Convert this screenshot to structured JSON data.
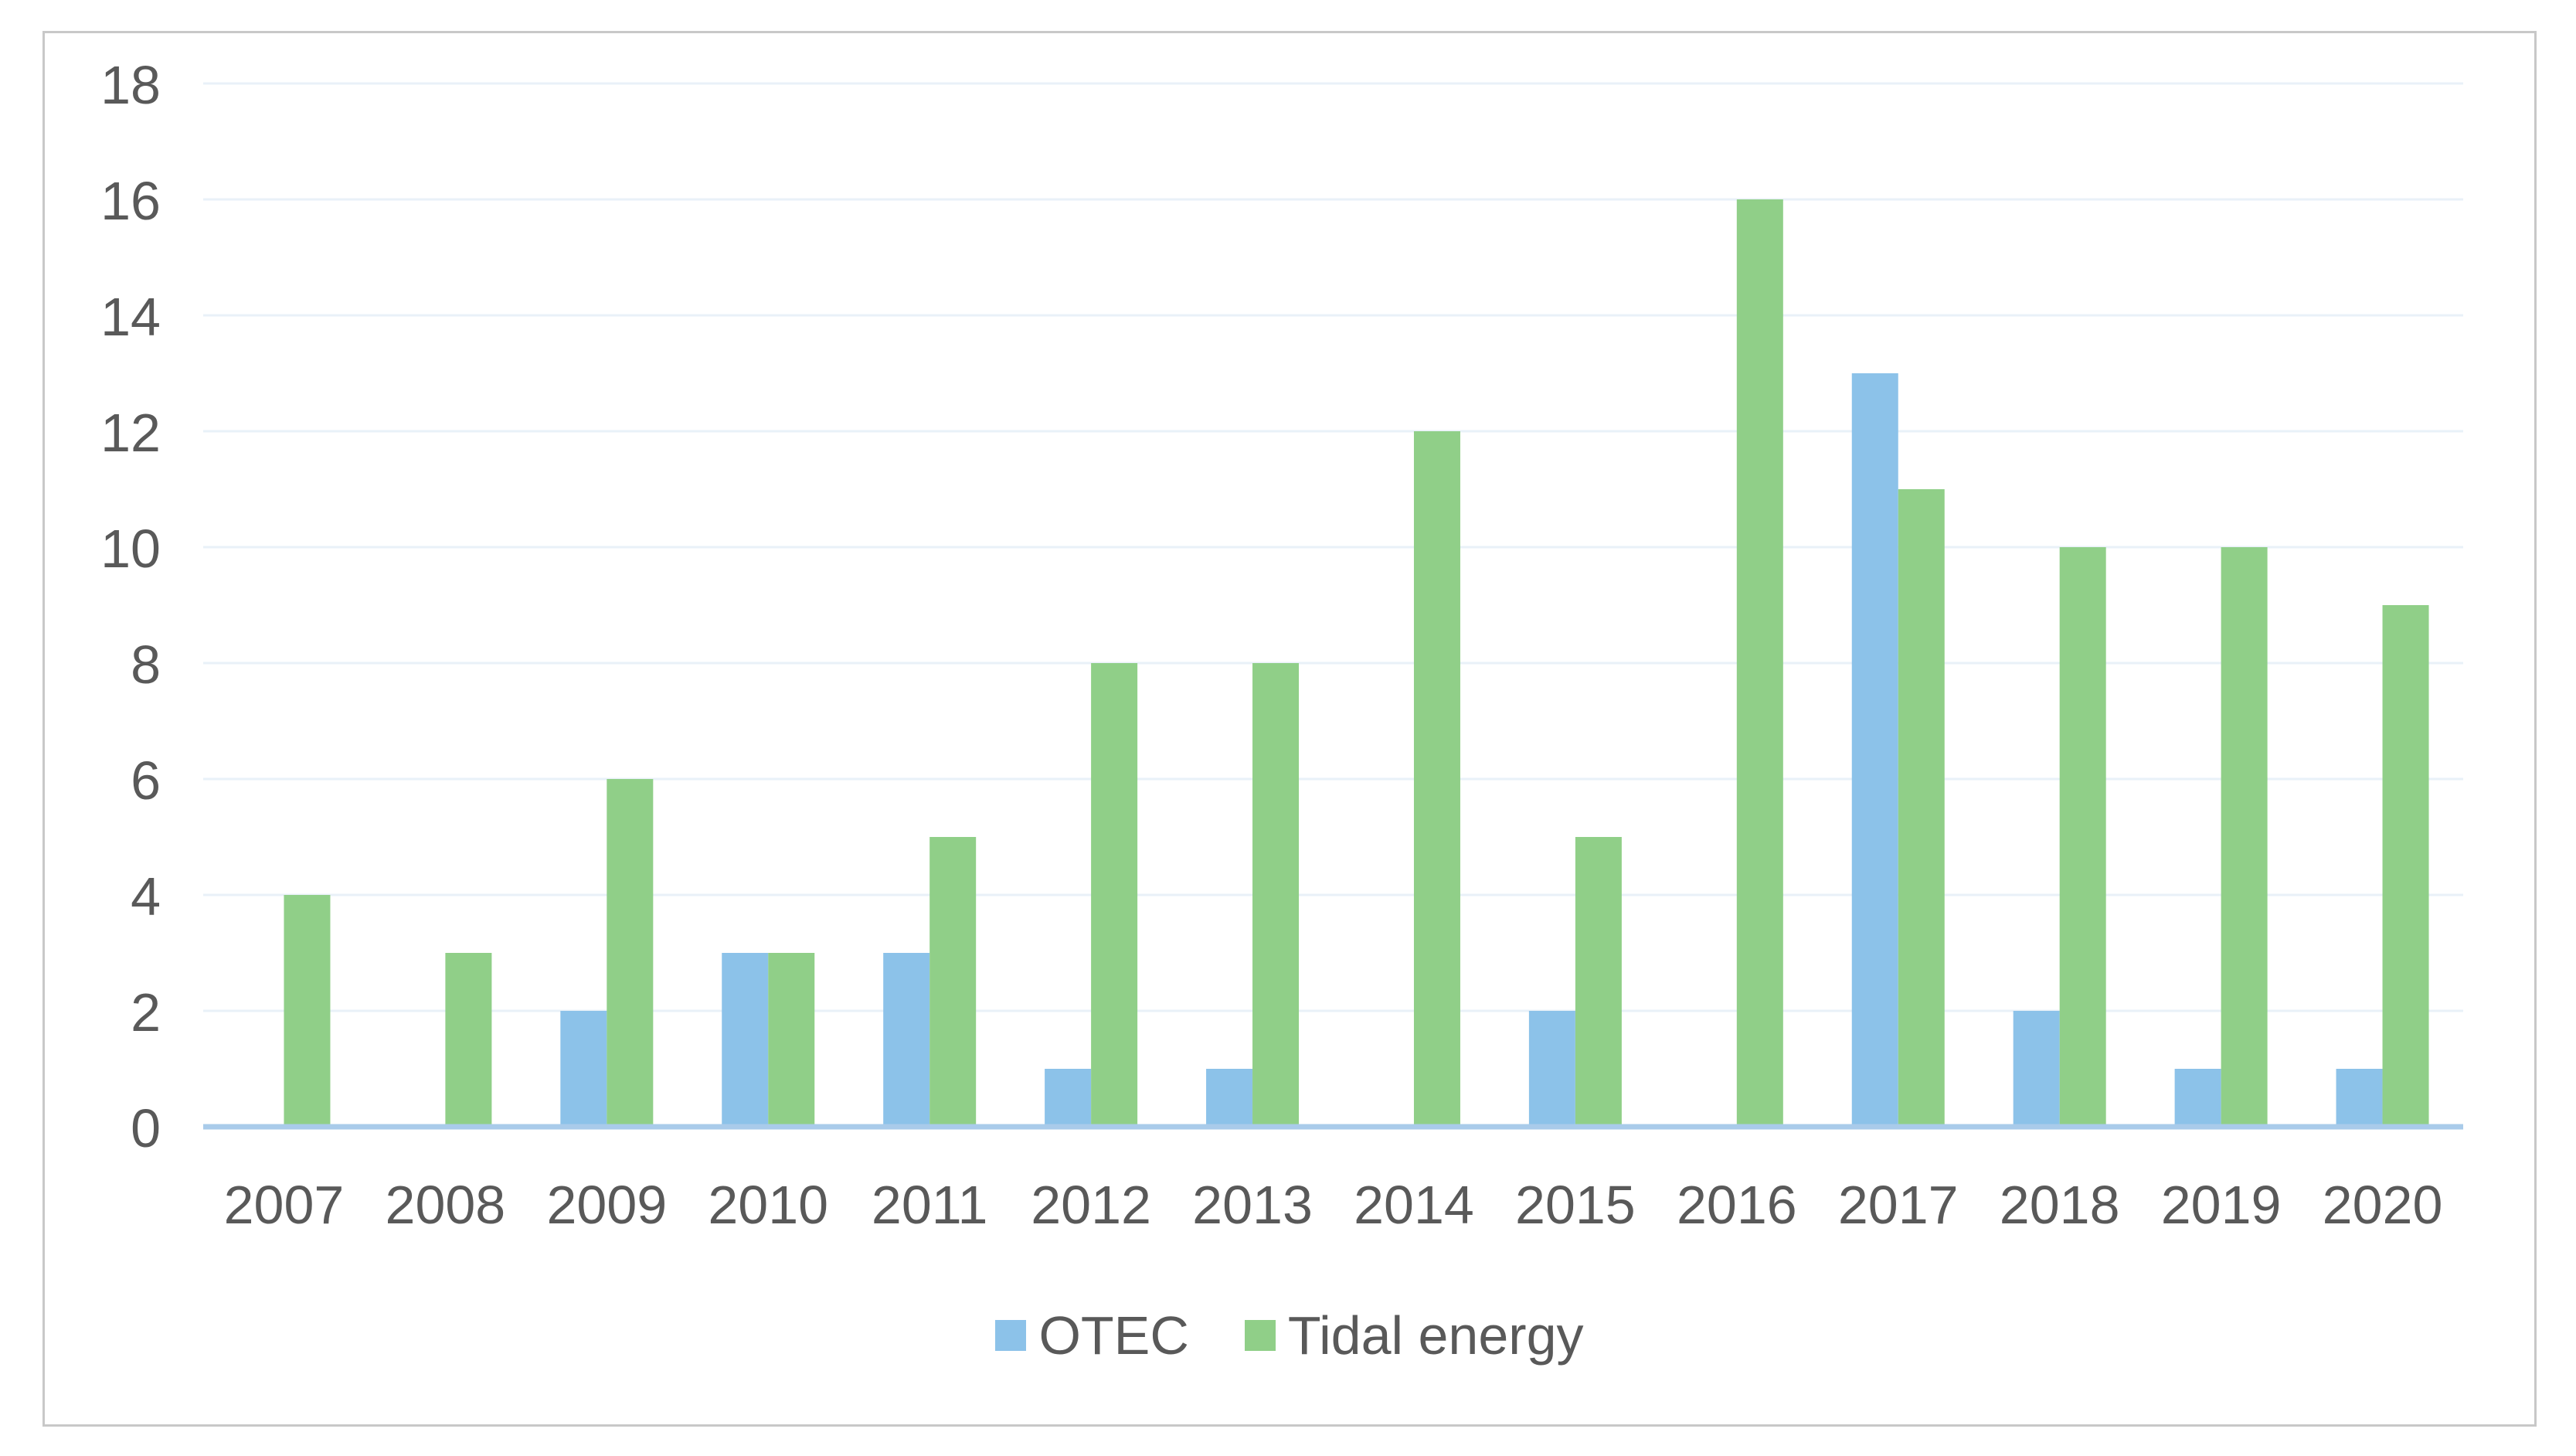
{
  "chart_data": {
    "type": "bar",
    "title": "",
    "xlabel": "",
    "ylabel": "",
    "categories": [
      "2007",
      "2008",
      "2009",
      "2010",
      "2011",
      "2012",
      "2013",
      "2014",
      "2015",
      "2016",
      "2017",
      "2018",
      "2019",
      "2020"
    ],
    "series": [
      {
        "name": "OTEC",
        "color": "#8CC2E9",
        "values": [
          0,
          0,
          2,
          3,
          3,
          1,
          1,
          0,
          2,
          0,
          13,
          2,
          1,
          1
        ]
      },
      {
        "name": "Tidal energy",
        "color": "#90CF88",
        "values": [
          4,
          3,
          6,
          3,
          5,
          8,
          8,
          12,
          5,
          16,
          11,
          10,
          10,
          9
        ]
      }
    ],
    "ylim": [
      0,
      18
    ],
    "yticks": [
      0,
      2,
      4,
      6,
      8,
      10,
      12,
      14,
      16,
      18
    ],
    "grid": true,
    "legend_position": "bottom"
  },
  "style": {
    "tick_text_color": "#595959",
    "gridline_color": "#E9F1F8",
    "baseline_color": "#A9CBEA",
    "frame_border_color": "#C8C8C8",
    "background_color": "#FFFFFF"
  }
}
